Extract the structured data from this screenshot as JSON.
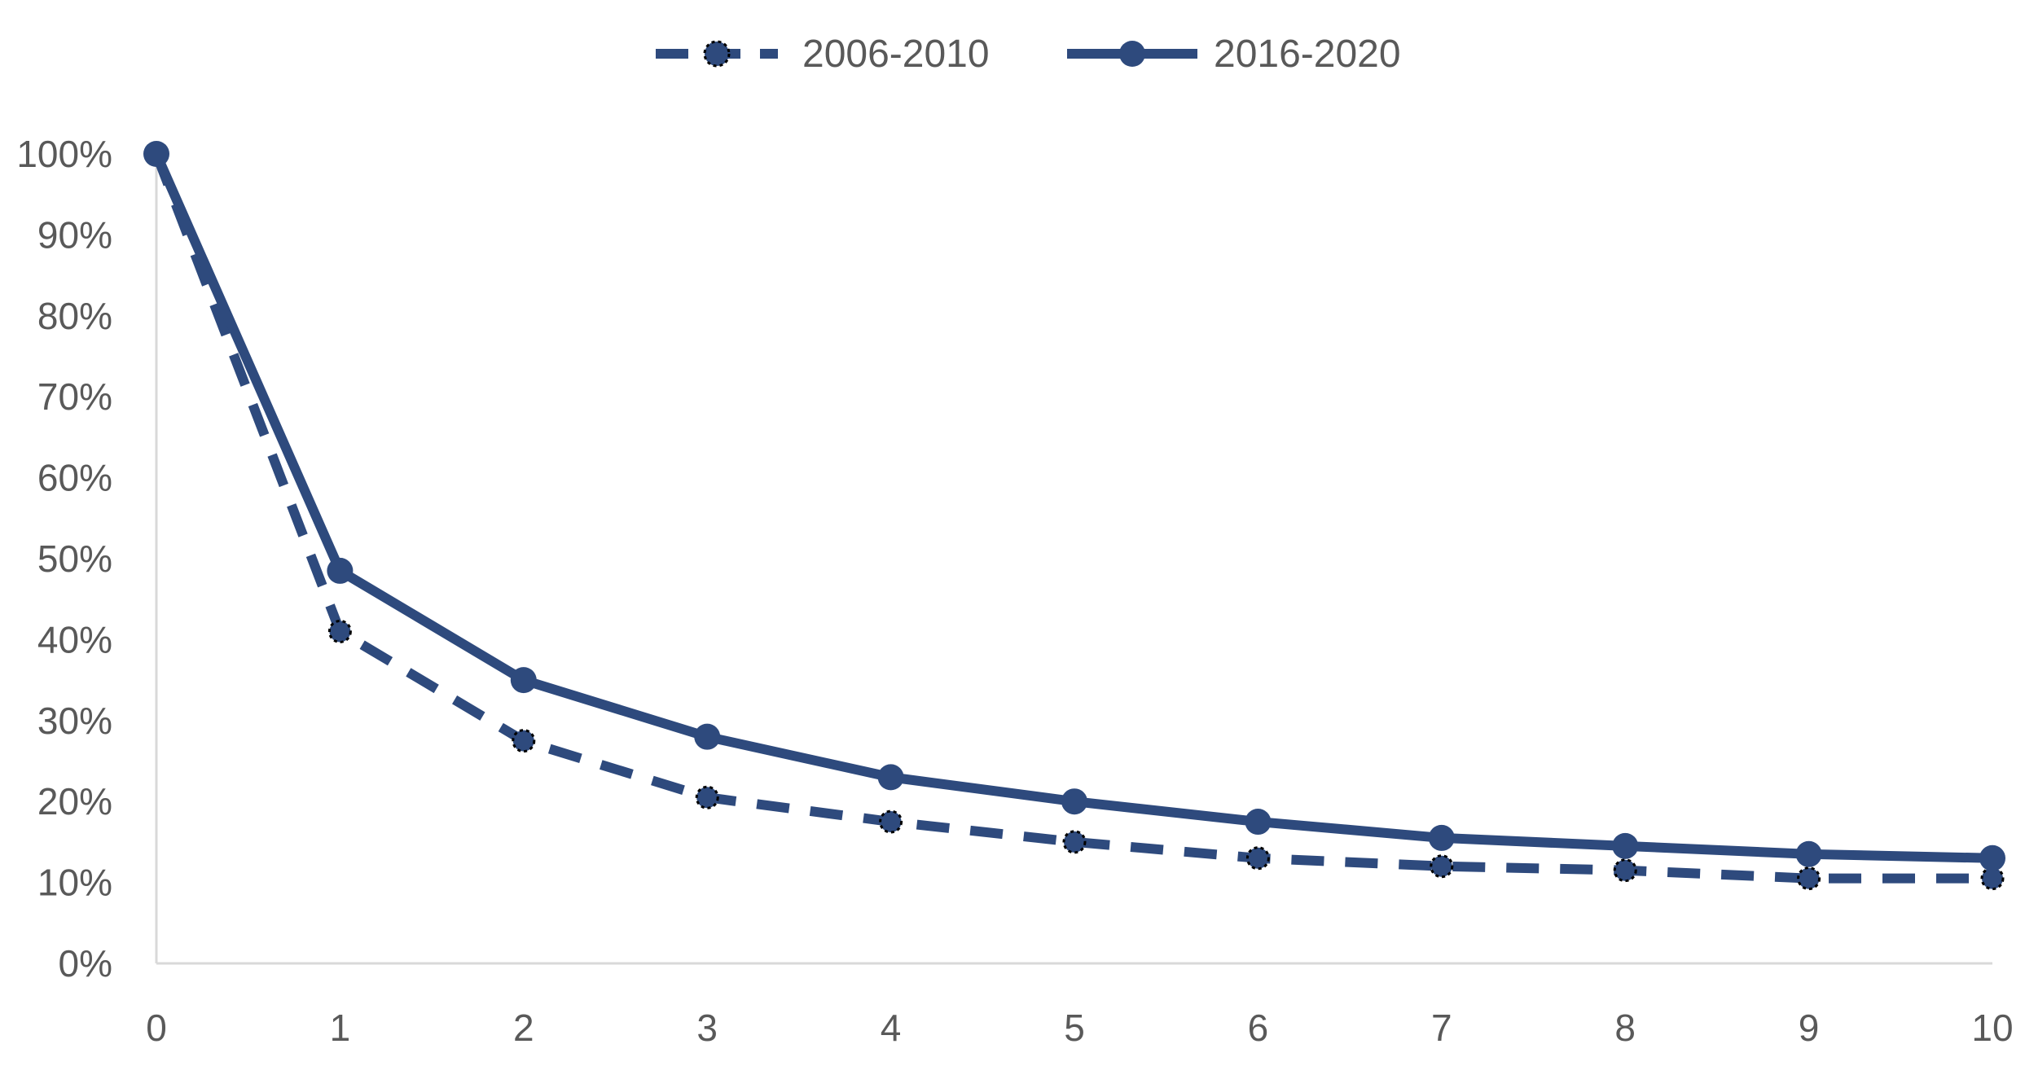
{
  "chart_data": {
    "type": "line",
    "title": "",
    "xlabel": "",
    "ylabel": "",
    "x": [
      0,
      1,
      2,
      3,
      4,
      5,
      6,
      7,
      8,
      9,
      10
    ],
    "x_tick_labels": [
      "0",
      "1",
      "2",
      "3",
      "4",
      "5",
      "6",
      "7",
      "8",
      "9",
      "10"
    ],
    "xlim": [
      0,
      10
    ],
    "ylim": [
      0,
      100
    ],
    "y_ticks": [
      0,
      10,
      20,
      30,
      40,
      50,
      60,
      70,
      80,
      90,
      100
    ],
    "y_tick_labels": [
      "0%",
      "10%",
      "20%",
      "30%",
      "40%",
      "50%",
      "60%",
      "70%",
      "80%",
      "90%",
      "100%"
    ],
    "grid": false,
    "legend_position": "top-center",
    "series": [
      {
        "name": "2006-2010",
        "line_style": "dashed",
        "marker": "circle-dotted-outline",
        "color": "#2E4A7D",
        "values": [
          100,
          41,
          27.5,
          20.5,
          17.5,
          15,
          13,
          12,
          11.5,
          10.5,
          10.5
        ]
      },
      {
        "name": "2016-2020",
        "line_style": "solid",
        "marker": "circle",
        "color": "#2E4A7D",
        "values": [
          100,
          48.5,
          35,
          28,
          23,
          20,
          17.5,
          15.5,
          14.5,
          13.5,
          13
        ]
      }
    ]
  }
}
